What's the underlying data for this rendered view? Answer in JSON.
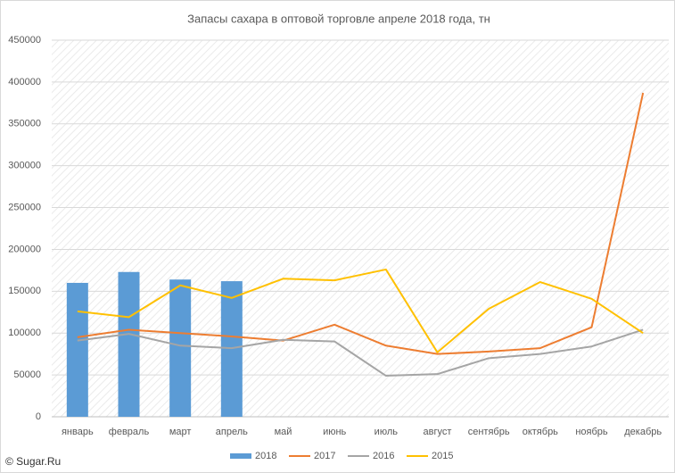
{
  "chart_data": {
    "type": "combo",
    "title": "Запасы сахара в оптовой торговле апреле 2018 года, тн",
    "source": "© Sugar.Ru",
    "categories": [
      "январь",
      "февраль",
      "март",
      "апрель",
      "май",
      "июнь",
      "июль",
      "август",
      "сентябрь",
      "октябрь",
      "ноябрь",
      "декабрь"
    ],
    "series": [
      {
        "name": "2018",
        "type": "bar",
        "color": "#5b9bd5",
        "values": [
          160000,
          173000,
          164000,
          162000,
          null,
          null,
          null,
          null,
          null,
          null,
          null,
          null
        ]
      },
      {
        "name": "2017",
        "type": "line",
        "color": "#ed7d31",
        "values": [
          95000,
          104000,
          100000,
          96000,
          91000,
          110000,
          85000,
          75000,
          78000,
          82000,
          107000,
          387000
        ]
      },
      {
        "name": "2016",
        "type": "line",
        "color": "#a5a5a5",
        "values": [
          91000,
          99000,
          85000,
          82000,
          92000,
          90000,
          49000,
          51000,
          70000,
          75000,
          84000,
          104000
        ]
      },
      {
        "name": "2015",
        "type": "line",
        "color": "#ffc000",
        "values": [
          126000,
          119000,
          157000,
          142000,
          165000,
          163000,
          176000,
          77000,
          129000,
          161000,
          141000,
          100000
        ]
      }
    ],
    "ylim": [
      0,
      450000
    ],
    "yticks": [
      0,
      50000,
      100000,
      150000,
      200000,
      250000,
      300000,
      350000,
      400000,
      450000
    ],
    "grid": true,
    "legend": "bottom"
  }
}
